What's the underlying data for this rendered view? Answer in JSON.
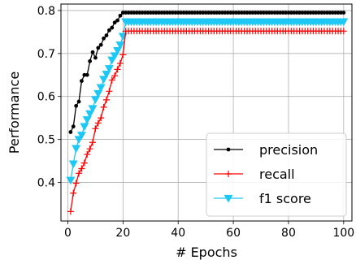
{
  "chart_data": {
    "type": "line",
    "xlabel": "# Epochs",
    "ylabel": "Performance",
    "xlim": [
      -2.5,
      103
    ],
    "ylim": [
      0.31,
      0.815
    ],
    "xticks": [
      0,
      20,
      40,
      60,
      80,
      100
    ],
    "yticks": [
      0.4,
      0.5,
      0.6,
      0.7,
      0.8
    ],
    "grid": true,
    "legend_position": "lower-right",
    "series": [
      {
        "name": "precision",
        "color": "#000000",
        "marker": "circle",
        "x": [
          1,
          2,
          3,
          4,
          5,
          6,
          7,
          8,
          9,
          10,
          11,
          12,
          13,
          14,
          15,
          16,
          17,
          18,
          19,
          20,
          21,
          22,
          23,
          24,
          25,
          26,
          27,
          28,
          29,
          30,
          31,
          32,
          33,
          34,
          35,
          36,
          37,
          38,
          39,
          40,
          41,
          42,
          43,
          44,
          45,
          46,
          47,
          48,
          49,
          50,
          51,
          52,
          53,
          54,
          55,
          56,
          57,
          58,
          59,
          60,
          61,
          62,
          63,
          64,
          65,
          66,
          67,
          68,
          69,
          70,
          71,
          72,
          73,
          74,
          75,
          76,
          77,
          78,
          79,
          80,
          81,
          82,
          83,
          84,
          85,
          86,
          87,
          88,
          89,
          90,
          91,
          92,
          93,
          94,
          95,
          96,
          97,
          98,
          99,
          100
        ],
        "y": [
          0.517,
          0.53,
          0.578,
          0.588,
          0.636,
          0.65,
          0.65,
          0.682,
          0.703,
          0.69,
          0.713,
          0.72,
          0.735,
          0.742,
          0.754,
          0.76,
          0.772,
          0.777,
          0.788,
          0.795,
          0.795,
          0.795,
          0.795,
          0.795,
          0.795,
          0.795,
          0.795,
          0.795,
          0.795,
          0.795,
          0.795,
          0.795,
          0.795,
          0.795,
          0.795,
          0.795,
          0.795,
          0.795,
          0.795,
          0.795,
          0.795,
          0.795,
          0.795,
          0.795,
          0.795,
          0.795,
          0.795,
          0.795,
          0.795,
          0.795,
          0.795,
          0.795,
          0.795,
          0.795,
          0.795,
          0.795,
          0.795,
          0.795,
          0.795,
          0.795,
          0.795,
          0.795,
          0.795,
          0.795,
          0.795,
          0.795,
          0.795,
          0.795,
          0.795,
          0.795,
          0.795,
          0.795,
          0.795,
          0.795,
          0.795,
          0.795,
          0.795,
          0.795,
          0.795,
          0.795,
          0.795,
          0.795,
          0.795,
          0.795,
          0.795,
          0.795,
          0.795,
          0.795,
          0.795,
          0.795,
          0.795,
          0.795,
          0.795,
          0.795,
          0.795,
          0.795,
          0.795,
          0.795,
          0.795,
          0.795
        ]
      },
      {
        "name": "recall",
        "color": "#ff0000",
        "marker": "plus",
        "x": [
          1,
          2,
          3,
          4,
          5,
          6,
          7,
          8,
          9,
          10,
          11,
          12,
          13,
          14,
          15,
          16,
          17,
          18,
          19,
          20,
          21,
          22,
          23,
          24,
          25,
          26,
          27,
          28,
          29,
          30,
          31,
          32,
          33,
          34,
          35,
          36,
          37,
          38,
          39,
          40,
          41,
          42,
          43,
          44,
          45,
          46,
          47,
          48,
          49,
          50,
          51,
          52,
          53,
          54,
          55,
          56,
          57,
          58,
          59,
          60,
          61,
          62,
          63,
          64,
          65,
          66,
          67,
          68,
          69,
          70,
          71,
          72,
          73,
          74,
          75,
          76,
          77,
          78,
          79,
          80,
          81,
          82,
          83,
          84,
          85,
          86,
          87,
          88,
          89,
          90,
          91,
          92,
          93,
          94,
          95,
          96,
          97,
          98,
          99,
          100
        ],
        "y": [
          0.332,
          0.375,
          0.398,
          0.421,
          0.432,
          0.445,
          0.465,
          0.478,
          0.493,
          0.525,
          0.538,
          0.55,
          0.575,
          0.592,
          0.612,
          0.638,
          0.648,
          0.663,
          0.677,
          0.697,
          0.752,
          0.752,
          0.752,
          0.752,
          0.752,
          0.752,
          0.752,
          0.752,
          0.752,
          0.752,
          0.752,
          0.752,
          0.752,
          0.752,
          0.752,
          0.752,
          0.752,
          0.752,
          0.752,
          0.752,
          0.752,
          0.752,
          0.752,
          0.752,
          0.752,
          0.752,
          0.752,
          0.752,
          0.752,
          0.752,
          0.752,
          0.752,
          0.752,
          0.752,
          0.752,
          0.752,
          0.752,
          0.752,
          0.752,
          0.752,
          0.752,
          0.752,
          0.752,
          0.752,
          0.752,
          0.752,
          0.752,
          0.752,
          0.752,
          0.752,
          0.752,
          0.752,
          0.752,
          0.752,
          0.752,
          0.752,
          0.752,
          0.752,
          0.752,
          0.752,
          0.752,
          0.752,
          0.752,
          0.752,
          0.752,
          0.752,
          0.752,
          0.752,
          0.752,
          0.752,
          0.752,
          0.752,
          0.752,
          0.752,
          0.752,
          0.752,
          0.752,
          0.752,
          0.752,
          0.752
        ]
      },
      {
        "name": "f1 score",
        "color": "#1ec8f5",
        "marker": "triangle-down",
        "x": [
          1,
          2,
          3,
          4,
          5,
          6,
          7,
          8,
          9,
          10,
          11,
          12,
          13,
          14,
          15,
          16,
          17,
          18,
          19,
          20,
          21,
          22,
          23,
          24,
          25,
          26,
          27,
          28,
          29,
          30,
          31,
          32,
          33,
          34,
          35,
          36,
          37,
          38,
          39,
          40,
          41,
          42,
          43,
          44,
          45,
          46,
          47,
          48,
          49,
          50,
          51,
          52,
          53,
          54,
          55,
          56,
          57,
          58,
          59,
          60,
          61,
          62,
          63,
          64,
          65,
          66,
          67,
          68,
          69,
          70,
          71,
          72,
          73,
          74,
          75,
          76,
          77,
          78,
          79,
          80,
          81,
          82,
          83,
          84,
          85,
          86,
          87,
          88,
          89,
          90,
          91,
          92,
          93,
          94,
          95,
          96,
          97,
          98,
          99,
          100
        ],
        "y": [
          0.405,
          0.443,
          0.479,
          0.5,
          0.51,
          0.53,
          0.546,
          0.56,
          0.572,
          0.593,
          0.607,
          0.621,
          0.64,
          0.652,
          0.665,
          0.685,
          0.695,
          0.707,
          0.72,
          0.74,
          0.774,
          0.774,
          0.774,
          0.774,
          0.774,
          0.774,
          0.774,
          0.774,
          0.774,
          0.774,
          0.774,
          0.774,
          0.774,
          0.774,
          0.774,
          0.774,
          0.774,
          0.774,
          0.774,
          0.774,
          0.774,
          0.774,
          0.774,
          0.774,
          0.774,
          0.774,
          0.774,
          0.774,
          0.774,
          0.774,
          0.774,
          0.774,
          0.774,
          0.774,
          0.774,
          0.774,
          0.774,
          0.774,
          0.774,
          0.774,
          0.774,
          0.774,
          0.774,
          0.774,
          0.774,
          0.774,
          0.774,
          0.774,
          0.774,
          0.774,
          0.774,
          0.774,
          0.774,
          0.774,
          0.774,
          0.774,
          0.774,
          0.774,
          0.774,
          0.774,
          0.774,
          0.774,
          0.774,
          0.774,
          0.774,
          0.774,
          0.774,
          0.774,
          0.774,
          0.774,
          0.774,
          0.774,
          0.774,
          0.774,
          0.774,
          0.774,
          0.774,
          0.774,
          0.774,
          0.774
        ]
      }
    ]
  }
}
